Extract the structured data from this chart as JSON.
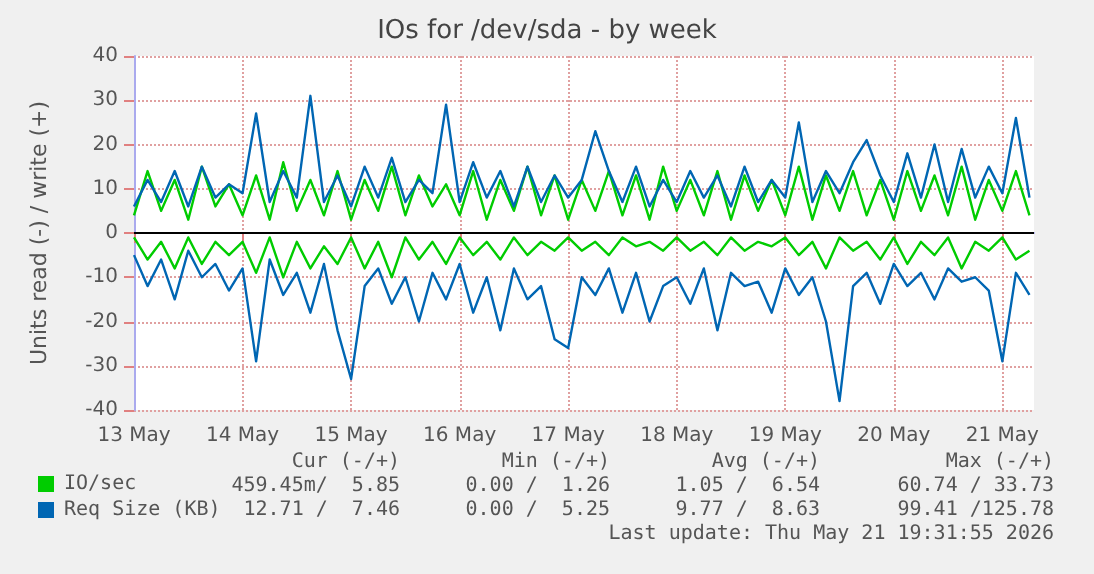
{
  "chart_data": {
    "type": "line",
    "title": "IOs for /dev/sda - by week",
    "ylabel": "Units read (-) / write (+)",
    "x": [
      "2026-05-13T00:00",
      "2026-05-13T03:00",
      "2026-05-13T06:00",
      "2026-05-13T09:00",
      "2026-05-13T12:00",
      "2026-05-13T15:00",
      "2026-05-13T18:00",
      "2026-05-13T21:00",
      "2026-05-14T00:00",
      "2026-05-14T03:00",
      "2026-05-14T06:00",
      "2026-05-14T09:00",
      "2026-05-14T12:00",
      "2026-05-14T15:00",
      "2026-05-14T18:00",
      "2026-05-14T21:00",
      "2026-05-15T00:00",
      "2026-05-15T03:00",
      "2026-05-15T06:00",
      "2026-05-15T09:00",
      "2026-05-15T12:00",
      "2026-05-15T15:00",
      "2026-05-15T18:00",
      "2026-05-15T21:00",
      "2026-05-16T00:00",
      "2026-05-16T03:00",
      "2026-05-16T06:00",
      "2026-05-16T09:00",
      "2026-05-16T12:00",
      "2026-05-16T15:00",
      "2026-05-16T18:00",
      "2026-05-16T21:00",
      "2026-05-17T00:00",
      "2026-05-17T03:00",
      "2026-05-17T06:00",
      "2026-05-17T09:00",
      "2026-05-17T12:00",
      "2026-05-17T15:00",
      "2026-05-17T18:00",
      "2026-05-17T21:00",
      "2026-05-18T00:00",
      "2026-05-18T03:00",
      "2026-05-18T06:00",
      "2026-05-18T09:00",
      "2026-05-18T12:00",
      "2026-05-18T15:00",
      "2026-05-18T18:00",
      "2026-05-18T21:00",
      "2026-05-19T00:00",
      "2026-05-19T03:00",
      "2026-05-19T06:00",
      "2026-05-19T09:00",
      "2026-05-19T12:00",
      "2026-05-19T15:00",
      "2026-05-19T18:00",
      "2026-05-19T21:00",
      "2026-05-20T00:00",
      "2026-05-20T03:00",
      "2026-05-20T06:00",
      "2026-05-20T09:00",
      "2026-05-20T12:00",
      "2026-05-20T15:00",
      "2026-05-20T18:00",
      "2026-05-20T21:00",
      "2026-05-21T00:00",
      "2026-05-21T03:00",
      "2026-05-21T06:00"
    ],
    "series": [
      {
        "name": "IO/sec",
        "color": "#00cc00",
        "values": [
          4,
          14,
          5,
          12,
          3,
          15,
          6,
          11,
          4,
          13,
          3,
          16,
          5,
          12,
          4,
          14,
          3,
          12,
          5,
          15,
          4,
          13,
          6,
          11,
          4,
          14,
          3,
          12,
          5,
          15,
          4,
          13,
          3,
          12,
          5,
          14,
          4,
          13,
          3,
          15,
          5,
          12,
          4,
          14,
          3,
          13,
          5,
          12,
          4,
          15,
          3,
          13,
          5,
          14,
          4,
          12,
          3,
          14,
          5,
          13,
          4,
          15,
          3,
          12,
          5,
          14,
          4
        ]
      },
      {
        "color": "#00cc00",
        "values": [
          -1,
          -6,
          -2,
          -8,
          -1,
          -7,
          -2,
          -5,
          -2,
          -9,
          -1,
          -10,
          -2,
          -8,
          -3,
          -7,
          -1,
          -8,
          -2,
          -10,
          -1,
          -6,
          -2,
          -7,
          -1,
          -5,
          -2,
          -6,
          -1,
          -5,
          -2,
          -4,
          -1,
          -4,
          -2,
          -5,
          -1,
          -3,
          -2,
          -4,
          -1,
          -4,
          -2,
          -5,
          -1,
          -4,
          -2,
          -3,
          -1,
          -5,
          -2,
          -8,
          -1,
          -4,
          -2,
          -6,
          -1,
          -7,
          -2,
          -5,
          -1,
          -8,
          -2,
          -4,
          -1,
          -6,
          -4
        ]
      },
      {
        "name": "Req Size (KB)",
        "color": "#0066b3",
        "values": [
          6,
          12,
          7,
          14,
          6,
          15,
          8,
          11,
          9,
          27,
          7,
          14,
          8,
          31,
          7,
          13,
          6,
          15,
          8,
          17,
          7,
          12,
          9,
          29,
          7,
          16,
          8,
          14,
          6,
          15,
          7,
          13,
          8,
          12,
          23,
          14,
          7,
          15,
          6,
          12,
          7,
          14,
          8,
          13,
          6,
          15,
          7,
          12,
          8,
          25,
          7,
          14,
          9,
          16,
          21,
          13,
          7,
          18,
          8,
          20,
          7,
          19,
          8,
          15,
          9,
          26,
          8
        ]
      },
      {
        "color": "#0066b3",
        "values": [
          -5,
          -12,
          -6,
          -15,
          -4,
          -10,
          -7,
          -13,
          -8,
          -29,
          -6,
          -14,
          -9,
          -18,
          -7,
          -22,
          -33,
          -12,
          -8,
          -16,
          -10,
          -20,
          -9,
          -15,
          -7,
          -18,
          -10,
          -22,
          -8,
          -15,
          -12,
          -24,
          -26,
          -10,
          -14,
          -8,
          -18,
          -9,
          -20,
          -12,
          -10,
          -16,
          -8,
          -22,
          -9,
          -12,
          -11,
          -18,
          -8,
          -14,
          -10,
          -20,
          -38,
          -12,
          -9,
          -16,
          -7,
          -12,
          -9,
          -15,
          -8,
          -11,
          -10,
          -13,
          -29,
          -9,
          -14
        ]
      }
    ],
    "xlim": [
      "2026-05-13T00:00",
      "2026-05-21T07:00"
    ],
    "xticks": [
      {
        "value": "2026-05-13T00:00",
        "label": "13 May"
      },
      {
        "value": "2026-05-14T00:00",
        "label": "14 May"
      },
      {
        "value": "2026-05-15T00:00",
        "label": "15 May"
      },
      {
        "value": "2026-05-16T00:00",
        "label": "16 May"
      },
      {
        "value": "2026-05-17T00:00",
        "label": "17 May"
      },
      {
        "value": "2026-05-18T00:00",
        "label": "18 May"
      },
      {
        "value": "2026-05-19T00:00",
        "label": "19 May"
      },
      {
        "value": "2026-05-20T00:00",
        "label": "20 May"
      },
      {
        "value": "2026-05-21T00:00",
        "label": "21 May"
      }
    ],
    "ylim": [
      -40,
      40
    ],
    "yticks": [
      -40,
      -30,
      -20,
      -10,
      0,
      10,
      20,
      30,
      40
    ],
    "ref_lines": [
      {
        "axis": "y",
        "value": 0,
        "color": "#000000"
      }
    ],
    "grid": true,
    "legend": "bottom left",
    "marker": "none",
    "line_style": "solid",
    "annotations": [
      "Cur (-/+)",
      "Min (-/+)",
      "Avg (-/+)",
      "Max (-/+)",
      "459.45m/  5.85",
      "0.00 /  1.26",
      "1.05 /  6.54",
      "60.74 / 33.73",
      "12.71 /  7.46",
      "0.00 /  5.25",
      "9.77 /  8.63",
      "99.41 /125.78",
      "Last update: Thu May 21 19:31:55 2026"
    ]
  }
}
